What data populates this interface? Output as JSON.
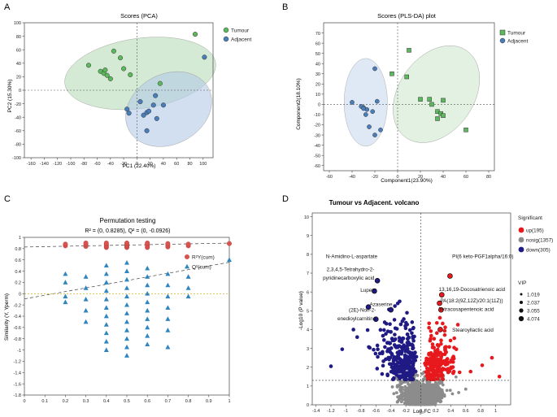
{
  "chart_data": [
    {
      "id": "A",
      "type": "scatter",
      "panel_label": "A",
      "title": "Scores (PCA)",
      "xlabel": "PC1 (22.40%)",
      "ylabel": "PC2 (15.30%)",
      "xlim": [
        -170,
        115
      ],
      "ylim": [
        -100,
        100
      ],
      "xticks": [
        -160,
        -140,
        -120,
        -100,
        -80,
        -60,
        -40,
        -20,
        0,
        20,
        40,
        60,
        80,
        100
      ],
      "yticks": [
        -100,
        -80,
        -60,
        -40,
        -20,
        0,
        20,
        40,
        60,
        80,
        100
      ],
      "legend": [
        {
          "label": "Tumour",
          "color": "#5cb85c"
        },
        {
          "label": "Adjacent",
          "color": "#4a7ebb"
        }
      ],
      "series": [
        {
          "name": "Tumour",
          "color": "#5cb85c",
          "points": [
            [
              -73,
              37
            ],
            [
              -55,
              28
            ],
            [
              -50,
              25
            ],
            [
              -48,
              30
            ],
            [
              -45,
              22
            ],
            [
              -40,
              17
            ],
            [
              -35,
              58
            ],
            [
              -25,
              48
            ],
            [
              -20,
              32
            ],
            [
              -10,
              23
            ],
            [
              35,
              10
            ],
            [
              88,
              83
            ]
          ]
        },
        {
          "name": "Adjacent",
          "color": "#4a7ebb",
          "points": [
            [
              -15,
              -28
            ],
            [
              -12,
              -34
            ],
            [
              5,
              -17
            ],
            [
              10,
              -37
            ],
            [
              15,
              -33
            ],
            [
              18,
              -31
            ],
            [
              25,
              -22
            ],
            [
              30,
              -42
            ],
            [
              15,
              -60
            ],
            [
              40,
              -22
            ],
            [
              28,
              -8
            ],
            [
              102,
              49
            ]
          ]
        }
      ],
      "ellipses": [
        {
          "series": "Tumour",
          "cx": 5,
          "cy": 25,
          "rx": 115,
          "ry": 52,
          "angle": -8,
          "fill": "#b8dcb8"
        },
        {
          "series": "Adjacent",
          "cx": 48,
          "cy": -28,
          "rx": 68,
          "ry": 52,
          "angle": -28,
          "fill": "#b3c9e6"
        }
      ]
    },
    {
      "id": "B",
      "type": "scatter",
      "panel_label": "B",
      "title": "Scores (PLS-DA) plot",
      "xlabel": "Component1(23.90%)",
      "ylabel": "Component2(18.10%)",
      "xlim": [
        -65,
        85
      ],
      "ylim": [
        -65,
        80
      ],
      "xticks": [
        -60,
        -40,
        -20,
        0,
        20,
        40,
        60,
        80
      ],
      "yticks": [
        -60,
        -50,
        -40,
        -30,
        -20,
        -10,
        0,
        10,
        20,
        30,
        40,
        50,
        60,
        70
      ],
      "legend": [
        {
          "label": "Tumour",
          "color": "#5cb85c"
        },
        {
          "label": "Adjacent",
          "color": "#4a7ebb"
        }
      ],
      "series": [
        {
          "name": "Tumour",
          "color": "#5cb85c",
          "points": [
            [
              10,
              53
            ],
            [
              8,
              27
            ],
            [
              -5,
              30
            ],
            [
              20,
              5
            ],
            [
              28,
              5
            ],
            [
              30,
              0
            ],
            [
              35,
              -7
            ],
            [
              38,
              -9
            ],
            [
              40,
              -11
            ],
            [
              35,
              -14
            ],
            [
              40,
              4
            ],
            [
              60,
              -25
            ]
          ]
        },
        {
          "name": "Adjacent",
          "color": "#4a7ebb",
          "points": [
            [
              -20,
              35
            ],
            [
              -18,
              3
            ],
            [
              -22,
              -7
            ],
            [
              -25,
              -22
            ],
            [
              -27,
              -5
            ],
            [
              -28,
              -10
            ],
            [
              -30,
              -3
            ],
            [
              -32,
              -2
            ],
            [
              -30,
              -4
            ],
            [
              -40,
              2
            ],
            [
              -20,
              -30
            ],
            [
              -15,
              -25
            ]
          ]
        }
      ],
      "ellipses": [
        {
          "series": "Tumour",
          "cx": 34,
          "cy": 10,
          "rx": 33,
          "ry": 52,
          "angle": 35,
          "fill": "#cfe8cf"
        },
        {
          "series": "Adjacent",
          "cx": -28,
          "cy": 2,
          "rx": 19,
          "ry": 43,
          "angle": 0,
          "fill": "#c9daf0"
        }
      ]
    },
    {
      "id": "C",
      "type": "scatter",
      "panel_label": "C",
      "title": "Permutation testing",
      "subtitle": "R² = (0, 0.8285), Q² = (0, -0.0926)",
      "xlabel": "",
      "ylabel": "Similarity (Y, Yperm)",
      "xlim": [
        0,
        1
      ],
      "ylim": [
        -1.8,
        1.0
      ],
      "xticks": [
        0,
        0.1,
        0.2,
        0.3,
        0.4,
        0.5,
        0.6,
        0.7,
        0.8,
        0.9,
        1
      ],
      "yticks": [
        -1.8,
        -1.6,
        -1.4,
        -1.2,
        -1,
        -0.8,
        -0.6,
        -0.4,
        -0.2,
        0,
        0.2,
        0.4,
        0.6,
        0.8,
        1
      ],
      "legend": [
        {
          "label": "R²Y(cum)",
          "color": "#d9534f",
          "marker": "circle"
        },
        {
          "label": "Q²(cum)",
          "color": "#2e86c1",
          "marker": "triangle"
        }
      ],
      "reference_lines": [
        {
          "series": "R2",
          "intercept": 0.8285,
          "slope": 0.07
        },
        {
          "series": "Q2",
          "intercept": -0.0926,
          "slope": 0.65
        }
      ],
      "series": [
        {
          "name": "R²Y(cum)",
          "color": "#d9534f",
          "marker": "circle",
          "points": [
            [
              0.2,
              0.85
            ],
            [
              0.2,
              0.88
            ],
            [
              0.3,
              0.84
            ],
            [
              0.3,
              0.87
            ],
            [
              0.3,
              0.9
            ],
            [
              0.4,
              0.82
            ],
            [
              0.4,
              0.84
            ],
            [
              0.4,
              0.86
            ],
            [
              0.4,
              0.88
            ],
            [
              0.4,
              0.9
            ],
            [
              0.5,
              0.82
            ],
            [
              0.5,
              0.84
            ],
            [
              0.5,
              0.86
            ],
            [
              0.5,
              0.88
            ],
            [
              0.5,
              0.9
            ],
            [
              0.6,
              0.82
            ],
            [
              0.6,
              0.85
            ],
            [
              0.6,
              0.88
            ],
            [
              0.6,
              0.9
            ],
            [
              0.7,
              0.83
            ],
            [
              0.7,
              0.86
            ],
            [
              0.7,
              0.89
            ],
            [
              0.8,
              0.85
            ],
            [
              0.8,
              0.88
            ],
            [
              1.0,
              0.89
            ]
          ]
        },
        {
          "name": "Q²(cum)",
          "color": "#2e86c1",
          "marker": "triangle",
          "points": [
            [
              0.2,
              0.35
            ],
            [
              0.2,
              0.2
            ],
            [
              0.2,
              -0.05
            ],
            [
              0.2,
              -0.15
            ],
            [
              0.3,
              0.3
            ],
            [
              0.3,
              0.1
            ],
            [
              0.3,
              -0.1
            ],
            [
              0.3,
              -0.3
            ],
            [
              0.3,
              -0.5
            ],
            [
              0.4,
              0.5
            ],
            [
              0.4,
              0.35
            ],
            [
              0.4,
              0.2
            ],
            [
              0.4,
              0.05
            ],
            [
              0.4,
              -0.1
            ],
            [
              0.4,
              -0.25
            ],
            [
              0.4,
              -0.4
            ],
            [
              0.4,
              -0.55
            ],
            [
              0.4,
              -0.7
            ],
            [
              0.4,
              -0.85
            ],
            [
              0.4,
              -1.0
            ],
            [
              0.5,
              0.55
            ],
            [
              0.5,
              0.4
            ],
            [
              0.5,
              0.25
            ],
            [
              0.5,
              0.1
            ],
            [
              0.5,
              -0.05
            ],
            [
              0.5,
              -0.2
            ],
            [
              0.5,
              -0.35
            ],
            [
              0.5,
              -0.5
            ],
            [
              0.5,
              -0.65
            ],
            [
              0.5,
              -0.8
            ],
            [
              0.5,
              -0.95
            ],
            [
              0.5,
              -1.1
            ],
            [
              0.6,
              0.45
            ],
            [
              0.6,
              0.3
            ],
            [
              0.6,
              0.15
            ],
            [
              0.6,
              0.0
            ],
            [
              0.6,
              -0.15
            ],
            [
              0.6,
              -0.3
            ],
            [
              0.6,
              -0.45
            ],
            [
              0.6,
              -0.6
            ],
            [
              0.6,
              -0.75
            ],
            [
              0.6,
              -0.9
            ],
            [
              0.7,
              0.35
            ],
            [
              0.7,
              0.15
            ],
            [
              0.7,
              -0.05
            ],
            [
              0.7,
              -0.25
            ],
            [
              0.7,
              -0.45
            ],
            [
              0.7,
              -0.65
            ],
            [
              0.7,
              -0.95
            ],
            [
              0.8,
              0.3
            ],
            [
              0.8,
              0.1
            ],
            [
              0.8,
              -0.05
            ],
            [
              1.0,
              0.6
            ]
          ]
        }
      ]
    },
    {
      "id": "D",
      "type": "scatter",
      "panel_label": "D",
      "title": "Tumour vs Adjacent. volcano",
      "xlabel": "Log₂FC",
      "ylabel": "-Log10 (P value)",
      "xlim": [
        -1.45,
        1.2
      ],
      "ylim": [
        0,
        10.2
      ],
      "xticks": [
        -1.4,
        -1.2,
        -1,
        -0.8,
        -0.6,
        -0.4,
        -0.2,
        0,
        0.2,
        0.4,
        0.6,
        0.8,
        1
      ],
      "yticks": [
        0,
        1,
        2,
        3,
        4,
        5,
        6,
        7,
        8,
        9,
        10
      ],
      "threshold_y": 1.3,
      "threshold_x": 0,
      "legend_title": "Significant",
      "legend": [
        {
          "label": "up(195)",
          "color": "#e8191c"
        },
        {
          "label": "nosig(1357)",
          "color": "#8c8c8c"
        },
        {
          "label": "down(305)",
          "color": "#1f1a84"
        }
      ],
      "vip_title": "VIP",
      "vip_legend": [
        "1.019",
        "2.037",
        "3.055",
        "4.074"
      ],
      "annotations": [
        {
          "text": "N-Amidino-L-aspartate",
          "x": -0.58,
          "y": 7.8
        },
        {
          "text": "2,3,4,5-Tetrahydro-2-",
          "x": -0.62,
          "y": 7.1
        },
        {
          "text": "pyridinecarboxylic acid",
          "x": -0.62,
          "y": 6.65
        },
        {
          "text": "Lupex",
          "x": -0.62,
          "y": 6.0
        },
        {
          "text": "Azaserine",
          "x": -0.38,
          "y": 5.25
        },
        {
          "text": "(2E)-Non-2-",
          "x": -0.6,
          "y": 4.95
        },
        {
          "text": "enedioylcarnitine",
          "x": -0.6,
          "y": 4.5
        },
        {
          "text": "PI(6 keto-PGF1alpha/16:0)",
          "x": 0.42,
          "y": 7.8
        },
        {
          "text": "13,16,19-Docosatrienoic acid",
          "x": 0.24,
          "y": 6.05
        },
        {
          "text": "PA(18:2(9Z,12Z)/20:1(11Z))",
          "x": 0.26,
          "y": 5.45
        },
        {
          "text": "Tetracosapentenoic acid",
          "x": 0.24,
          "y": 5.0
        },
        {
          "text": "Stearoyllactic acid",
          "x": 0.42,
          "y": 3.9
        }
      ],
      "highlight_points": [
        {
          "x": -0.58,
          "y": 6.6,
          "group": "down"
        },
        {
          "x": -0.62,
          "y": 6.05,
          "group": "down"
        },
        {
          "x": -0.7,
          "y": 5.2,
          "group": "down"
        },
        {
          "x": -0.6,
          "y": 4.55,
          "group": "down"
        },
        {
          "x": -0.4,
          "y": 5.05,
          "group": "down"
        },
        {
          "x": 0.39,
          "y": 6.85,
          "group": "up"
        },
        {
          "x": 0.28,
          "y": 5.85,
          "group": "up"
        },
        {
          "x": 0.25,
          "y": 5.4,
          "group": "up"
        },
        {
          "x": 0.27,
          "y": 5.05,
          "group": "up"
        },
        {
          "x": 0.26,
          "y": 4.0,
          "group": "up"
        }
      ],
      "series": [
        {
          "name": "down(305)",
          "color": "#1f1a84",
          "count": 305
        },
        {
          "name": "nosig(1357)",
          "color": "#8c8c8c",
          "count": 1357
        },
        {
          "name": "up(195)",
          "color": "#e8191c",
          "count": 195
        }
      ]
    }
  ]
}
